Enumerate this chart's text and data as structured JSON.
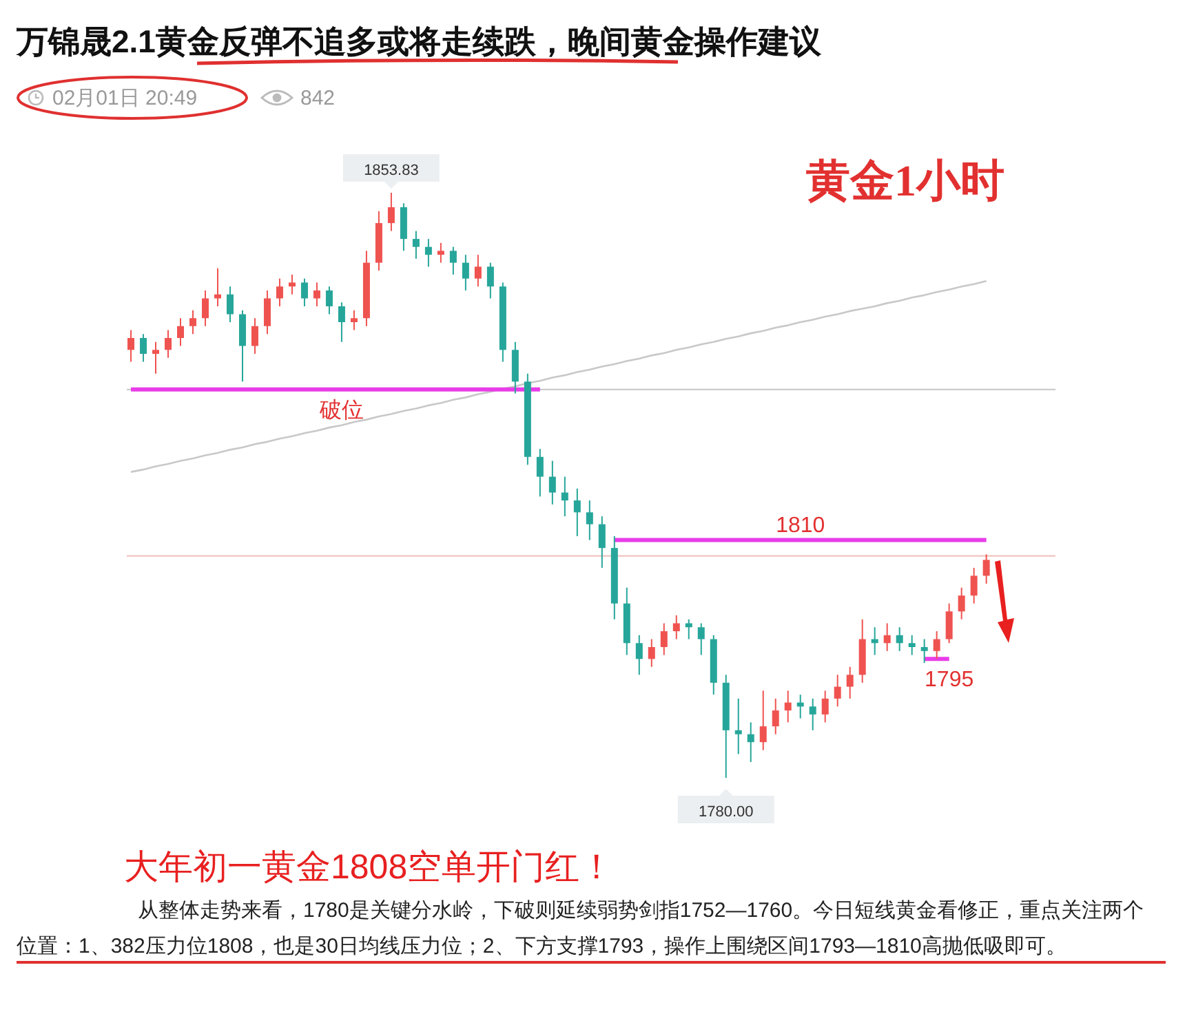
{
  "chart_data": {
    "type": "candlestick",
    "title": "万锦晟2.1黄金反弹不追多或将走续跌，晚间黄金操作建议",
    "categories": [
      null,
      null,
      null,
      null,
      null,
      null,
      null,
      null,
      null,
      null,
      null,
      null,
      null,
      null,
      null,
      null,
      null,
      null,
      null,
      null,
      null,
      null,
      null,
      null,
      null,
      null,
      null,
      null,
      null,
      null,
      null,
      null,
      null,
      null,
      null,
      null,
      null,
      null,
      null,
      null,
      null,
      null,
      null,
      null,
      null,
      null,
      null,
      null,
      null,
      null,
      null,
      null,
      null,
      null,
      null,
      null,
      null,
      null,
      null,
      null,
      null,
      null,
      null,
      null,
      null,
      null,
      null,
      null,
      null,
      null
    ],
    "ohlc": [
      [
        1834,
        1836.5,
        1832.5,
        1835.5
      ],
      [
        1835.5,
        1836,
        1832.5,
        1833.5
      ],
      [
        1833.5,
        1835,
        1831,
        1834
      ],
      [
        1834,
        1836.5,
        1833,
        1835.5
      ],
      [
        1835.5,
        1838,
        1834.5,
        1837
      ],
      [
        1837,
        1839,
        1836,
        1838
      ],
      [
        1838,
        1841.5,
        1837,
        1840.5
      ],
      [
        1840.5,
        1844.3,
        1839.5,
        1841
      ],
      [
        1841,
        1842,
        1837.5,
        1838.5
      ],
      [
        1838.5,
        1839,
        1830,
        1834.5
      ],
      [
        1834.5,
        1838,
        1833.5,
        1837
      ],
      [
        1837,
        1841.5,
        1836,
        1840.5
      ],
      [
        1840.5,
        1843,
        1839.5,
        1842
      ],
      [
        1842,
        1843.5,
        1841,
        1842.5
      ],
      [
        1842.5,
        1843,
        1839.5,
        1840.5
      ],
      [
        1840.5,
        1842.5,
        1839.5,
        1841.5
      ],
      [
        1841.5,
        1842,
        1838.5,
        1839.5
      ],
      [
        1839.5,
        1840,
        1835,
        1837.5
      ],
      [
        1837.5,
        1839,
        1836.5,
        1838
      ],
      [
        1838,
        1846.5,
        1837,
        1845
      ],
      [
        1845,
        1851.5,
        1844,
        1850
      ],
      [
        1850,
        1853.83,
        1849,
        1852
      ],
      [
        1852,
        1852.5,
        1846.5,
        1848
      ],
      [
        1848,
        1849,
        1845.5,
        1847
      ],
      [
        1847,
        1848,
        1844.5,
        1846
      ],
      [
        1846,
        1847.5,
        1845,
        1846.5
      ],
      [
        1846.5,
        1847,
        1843.5,
        1845
      ],
      [
        1845,
        1846,
        1841.5,
        1843
      ],
      [
        1843,
        1846,
        1842,
        1844.5
      ],
      [
        1844.5,
        1845,
        1840.5,
        1842
      ],
      [
        1842,
        1842.5,
        1832.5,
        1834
      ],
      [
        1834,
        1835,
        1828.5,
        1830
      ],
      [
        1830,
        1831,
        1819.5,
        1820.5
      ],
      [
        1820.5,
        1821.5,
        1815.5,
        1818
      ],
      [
        1818,
        1820,
        1814.5,
        1816
      ],
      [
        1816,
        1818,
        1813,
        1815
      ],
      [
        1815,
        1816.5,
        1810.5,
        1813.5
      ],
      [
        1813.5,
        1815,
        1810,
        1812
      ],
      [
        1812,
        1813,
        1806.5,
        1809
      ],
      [
        1809,
        1810.5,
        1800,
        1802
      ],
      [
        1802,
        1804,
        1795.5,
        1797
      ],
      [
        1797,
        1798,
        1793,
        1795
      ],
      [
        1795,
        1797.5,
        1794,
        1796.5
      ],
      [
        1796.5,
        1799.5,
        1795.5,
        1798.5
      ],
      [
        1798.5,
        1800.5,
        1797.5,
        1799.5
      ],
      [
        1799.5,
        1800,
        1797.5,
        1799
      ],
      [
        1799,
        1799.5,
        1795.5,
        1797.5
      ],
      [
        1797.5,
        1798,
        1790.5,
        1792
      ],
      [
        1792,
        1793,
        1780,
        1786
      ],
      [
        1786,
        1790,
        1783,
        1785.5
      ],
      [
        1785.5,
        1787,
        1782,
        1784.5
      ],
      [
        1784.5,
        1791,
        1783.5,
        1786.5
      ],
      [
        1786.5,
        1790,
        1785.5,
        1788.5
      ],
      [
        1788.5,
        1791,
        1787,
        1789.5
      ],
      [
        1789.5,
        1790.5,
        1787.5,
        1789
      ],
      [
        1789,
        1790,
        1786,
        1788
      ],
      [
        1788,
        1791,
        1787,
        1790
      ],
      [
        1790,
        1793,
        1789,
        1791.5
      ],
      [
        1791.5,
        1794,
        1790,
        1793
      ],
      [
        1793,
        1800,
        1792,
        1797.5
      ],
      [
        1797.5,
        1799,
        1795.5,
        1797
      ],
      [
        1797,
        1799.5,
        1796,
        1798
      ],
      [
        1798,
        1799,
        1796,
        1797
      ],
      [
        1797,
        1798,
        1795.5,
        1796.5
      ],
      [
        1796.5,
        1797.5,
        1794.5,
        1796
      ],
      [
        1796,
        1798.5,
        1795,
        1797.5
      ],
      [
        1797.5,
        1802,
        1797,
        1801
      ],
      [
        1801,
        1804,
        1800,
        1803
      ],
      [
        1803,
        1806.5,
        1802,
        1805.5
      ],
      [
        1805.5,
        1808.2,
        1804.5,
        1807.5
      ]
    ],
    "colors": [
      "#ef5350",
      "#26a69a",
      "#ef5350",
      "#ef5350",
      "#ef5350",
      "#ef5350",
      "#ef5350",
      "#ef5350",
      "#26a69a",
      "#26a69a",
      "#ef5350",
      "#ef5350",
      "#ef5350",
      "#ef5350",
      "#26a69a",
      "#ef5350",
      "#26a69a",
      "#26a69a",
      "#ef5350",
      "#ef5350",
      "#ef5350",
      "#ef5350",
      "#26a69a",
      "#26a69a",
      "#26a69a",
      "#ef5350",
      "#26a69a",
      "#26a69a",
      "#ef5350",
      "#26a69a",
      "#26a69a",
      "#26a69a",
      "#26a69a",
      "#26a69a",
      "#26a69a",
      "#26a69a",
      "#26a69a",
      "#26a69a",
      "#26a69a",
      "#26a69a",
      "#26a69a",
      "#26a69a",
      "#ef5350",
      "#ef5350",
      "#ef5350",
      "#26a69a",
      "#26a69a",
      "#26a69a",
      "#26a69a",
      "#26a69a",
      "#26a69a",
      "#ef5350",
      "#ef5350",
      "#ef5350",
      "#26a69a",
      "#26a69a",
      "#ef5350",
      "#ef5350",
      "#ef5350",
      "#ef5350",
      "#26a69a",
      "#ef5350",
      "#26a69a",
      "#26a69a",
      "#26a69a",
      "#ef5350",
      "#ef5350",
      "#ef5350",
      "#ef5350",
      "#ef5350"
    ],
    "series": [
      {
        "type": "line",
        "color": "#c8c8c8",
        "values": [
          1818.6,
          1818.9,
          1819.3,
          1819.6,
          1820.0,
          1820.3,
          1820.7,
          1821.0,
          1821.4,
          1821.7,
          1822.1,
          1822.4,
          1822.8,
          1823.1,
          1823.5,
          1823.8,
          1824.2,
          1824.5,
          1824.9,
          1825.2,
          1825.6,
          1825.9,
          1826.3,
          1826.6,
          1827.0,
          1827.3,
          1827.7,
          1828.0,
          1828.4,
          1828.7,
          1829.1,
          1829.4,
          1829.8,
          1830.1,
          1830.5,
          1830.8,
          1831.2,
          1831.5,
          1831.9,
          1832.2,
          1832.6,
          1832.9,
          1833.3,
          1833.6,
          1834.0,
          1834.3,
          1834.7,
          1835.0,
          1835.4,
          1835.7,
          1836.1,
          1836.4,
          1836.8,
          1837.1,
          1837.5,
          1837.8,
          1838.2,
          1838.5,
          1838.9,
          1839.2,
          1839.5,
          1839.9,
          1840.2,
          1840.6,
          1840.9,
          1841.3,
          1841.6,
          1842.0,
          1842.3,
          1842.7
        ]
      },
      {
        "type": "line",
        "name": "破位",
        "color": "#e83ce8",
        "values": [
          1829,
          1829,
          1829,
          1829,
          1829,
          1829,
          1829,
          1829,
          1829,
          1829,
          1829,
          1829,
          1829,
          1829,
          1829,
          1829,
          1829,
          1829,
          1829,
          1829,
          1829,
          1829,
          1829,
          1829,
          1829,
          1829,
          1829,
          1829,
          1829,
          1829,
          1829,
          1829,
          1829,
          1829,
          null,
          null,
          null,
          null,
          null,
          null,
          null,
          null,
          null,
          null,
          null,
          null,
          null,
          null,
          null,
          null,
          null,
          null,
          null,
          null,
          null,
          null,
          null,
          null,
          null,
          null,
          null,
          null,
          null,
          null,
          null,
          null,
          null,
          null,
          null,
          null
        ]
      },
      {
        "type": "line",
        "name": "1810",
        "color": "#e83ce8",
        "values": [
          null,
          null,
          null,
          null,
          null,
          null,
          null,
          null,
          null,
          null,
          null,
          null,
          null,
          null,
          null,
          null,
          null,
          null,
          null,
          null,
          null,
          null,
          null,
          null,
          null,
          null,
          null,
          null,
          null,
          null,
          null,
          null,
          null,
          null,
          null,
          null,
          null,
          null,
          null,
          1810,
          1810,
          1810,
          1810,
          1810,
          1810,
          1810,
          1810,
          1810,
          1810,
          1810,
          1810,
          1810,
          1810,
          1810,
          1810,
          1810,
          1810,
          1810,
          1810,
          1810,
          1810,
          1810,
          1810,
          1810,
          1810,
          1810,
          1810,
          1810,
          1810,
          1810
        ]
      },
      {
        "type": "line",
        "name": "1795",
        "color": "#e83ce8",
        "values": [
          null,
          null,
          null,
          null,
          null,
          null,
          null,
          null,
          null,
          null,
          null,
          null,
          null,
          null,
          null,
          null,
          null,
          null,
          null,
          null,
          null,
          null,
          null,
          null,
          null,
          null,
          null,
          null,
          null,
          null,
          null,
          null,
          null,
          null,
          null,
          null,
          null,
          null,
          null,
          null,
          null,
          null,
          null,
          null,
          null,
          null,
          null,
          null,
          null,
          null,
          null,
          null,
          null,
          null,
          null,
          null,
          null,
          null,
          null,
          null,
          null,
          null,
          null,
          null,
          1795,
          1795,
          1795,
          null,
          null,
          null
        ]
      }
    ],
    "ref_lines": [
      {
        "axis": "y",
        "value": 1829,
        "color": "#cccccc"
      },
      {
        "axis": "y",
        "value": 1808,
        "color": "#f2c4c0"
      }
    ],
    "annotations": [
      {
        "text": "1853.83",
        "y": 1853.83
      },
      {
        "text": "1780.00",
        "y": 1780
      },
      "02月01日 20:49",
      "842",
      "黄金1小时",
      "大年初一黄金1808空单开门红！",
      "从整体走势来看，1780是关键分水岭，下破则延续弱势剑指1752—1760。今日短线黄金看修正，重点关注两个位置：1、382压力位1808，也是30日均线压力位；2、下方支撑1793，操作上围绕区间1793—1810高抛低吸即可。"
    ]
  }
}
